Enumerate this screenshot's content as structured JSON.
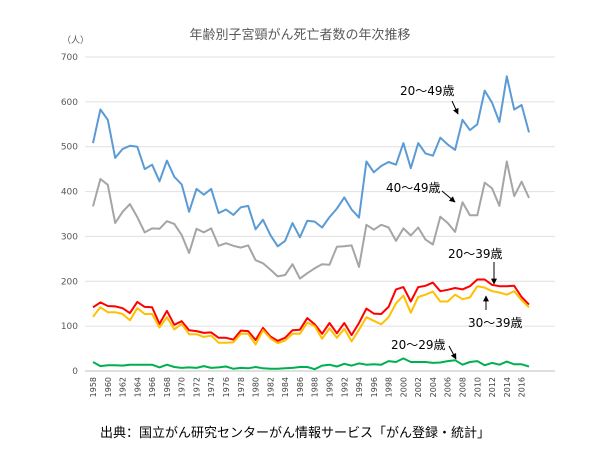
{
  "chart_data": {
    "type": "line",
    "title": "年齢別子宮頸がん死亡者数の年次推移",
    "unit_label": "（人）",
    "ylim": [
      0,
      700
    ],
    "yticks": [
      0,
      100,
      200,
      300,
      400,
      500,
      600,
      700
    ],
    "grid": true,
    "x_start": 1958,
    "x_end": 2017,
    "xtick_step": 2,
    "series": [
      {
        "name": "20〜49歳",
        "color": "#5B9BD5",
        "values": [
          508,
          583,
          560,
          475,
          495,
          502,
          500,
          450,
          460,
          423,
          469,
          433,
          416,
          355,
          406,
          393,
          406,
          352,
          360,
          348,
          365,
          368,
          316,
          337,
          303,
          278,
          290,
          330,
          298,
          335,
          333,
          320,
          343,
          362,
          387,
          360,
          342,
          467,
          443,
          457,
          466,
          460,
          508,
          452,
          508,
          485,
          480,
          520,
          505,
          493,
          560,
          537,
          550,
          625,
          598,
          555,
          657,
          583,
          593,
          532
        ]
      },
      {
        "name": "40〜49歳",
        "color": "#A5A5A5",
        "values": [
          367,
          428,
          415,
          330,
          355,
          372,
          343,
          309,
          318,
          317,
          334,
          328,
          303,
          263,
          317,
          309,
          318,
          279,
          285,
          279,
          275,
          280,
          247,
          240,
          226,
          211,
          214,
          238,
          206,
          218,
          229,
          238,
          237,
          277,
          278,
          280,
          232,
          326,
          315,
          326,
          320,
          290,
          318,
          302,
          320,
          293,
          282,
          344,
          330,
          310,
          376,
          347,
          347,
          420,
          407,
          368,
          467,
          390,
          422,
          386
        ]
      },
      {
        "name": "20〜39歳",
        "color": "#FF0000",
        "values": [
          142,
          153,
          145,
          144,
          140,
          129,
          154,
          143,
          142,
          105,
          134,
          103,
          111,
          91,
          89,
          85,
          86,
          74,
          74,
          70,
          90,
          89,
          69,
          96,
          77,
          67,
          74,
          91,
          92,
          118,
          104,
          83,
          107,
          84,
          107,
          80,
          107,
          139,
          128,
          127,
          143,
          182,
          187,
          155,
          187,
          190,
          197,
          178,
          181,
          185,
          182,
          189,
          204,
          204,
          192,
          189,
          189,
          190,
          165,
          148
        ]
      },
      {
        "name": "30〜39歳",
        "color": "#FFC000",
        "values": [
          121,
          142,
          131,
          131,
          127,
          113,
          140,
          127,
          127,
          97,
          120,
          93,
          105,
          82,
          82,
          76,
          79,
          63,
          63,
          64,
          83,
          83,
          59,
          91,
          73,
          62,
          68,
          83,
          83,
          108,
          100,
          72,
          95,
          74,
          94,
          66,
          92,
          120,
          112,
          104,
          120,
          151,
          168,
          130,
          165,
          170,
          177,
          155,
          155,
          170,
          160,
          164,
          189,
          186,
          178,
          175,
          170,
          178,
          158,
          142
        ]
      },
      {
        "name": "20〜29歳",
        "color": "#00B050",
        "values": [
          20,
          11,
          13,
          13,
          12,
          14,
          14,
          14,
          14,
          8,
          14,
          9,
          7,
          8,
          7,
          11,
          7,
          8,
          10,
          5,
          7,
          6,
          9,
          6,
          5,
          5,
          6,
          7,
          9,
          9,
          4,
          12,
          14,
          10,
          16,
          12,
          17,
          14,
          15,
          14,
          22,
          20,
          28,
          20,
          20,
          20,
          18,
          19,
          22,
          24,
          14,
          20,
          22,
          13,
          18,
          14,
          21,
          15,
          15,
          10
        ]
      }
    ]
  },
  "source": "出典：国立がん研究センターがん情報サービス「がん登録・統計」"
}
